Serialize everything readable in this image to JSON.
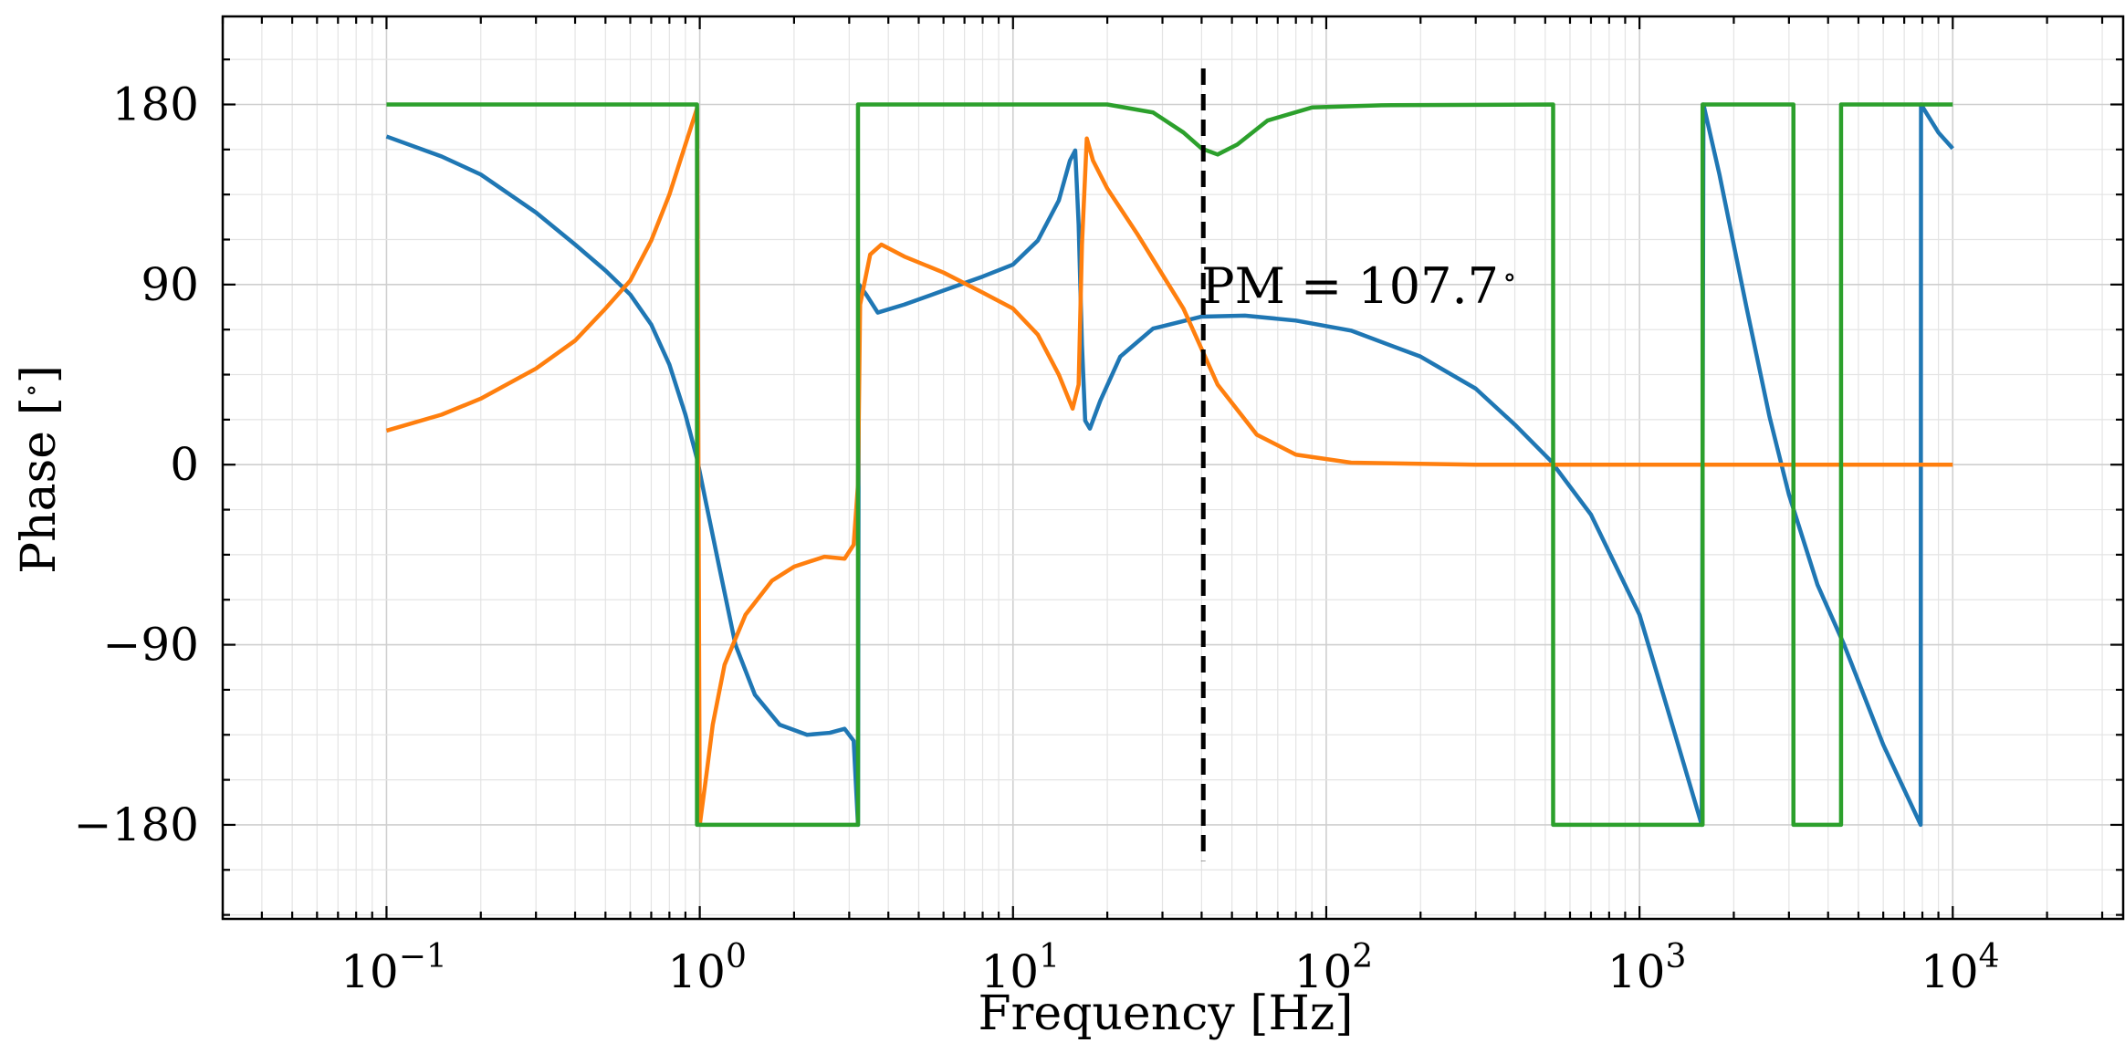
{
  "chart_data": {
    "type": "line",
    "title": "",
    "xlabel": "Frequency [Hz]",
    "ylabel": "Phase [°]",
    "ylabel_main": "Phase [",
    "ylabel_deg": "∘",
    "ylabel_close": "]",
    "xscale": "log",
    "xlim": [
      0.03,
      35000
    ],
    "ylim": [
      -227,
      224
    ],
    "grid": true,
    "x_ticks": [
      {
        "value": 0.1,
        "base": "10",
        "exp": "−1"
      },
      {
        "value": 1,
        "base": "10",
        "exp": "0"
      },
      {
        "value": 10,
        "base": "10",
        "exp": "1"
      },
      {
        "value": 100,
        "base": "10",
        "exp": "2"
      },
      {
        "value": 1000,
        "base": "10",
        "exp": "3"
      },
      {
        "value": 10000,
        "base": "10",
        "exp": "4"
      }
    ],
    "y_ticks": [
      {
        "value": 180,
        "label": "180"
      },
      {
        "value": 90,
        "label": "90"
      },
      {
        "value": 0,
        "label": "0"
      },
      {
        "value": -90,
        "label": "−90"
      },
      {
        "value": -180,
        "label": "−180"
      }
    ],
    "y_minor_step": 22.5,
    "vline": {
      "x": 40.5,
      "y_from": -198,
      "y_to": 198,
      "color": "#000000",
      "style": "dashed"
    },
    "annotation": {
      "x": 40.5,
      "y": 88,
      "text": "PM = 107.7",
      "suffix": "∘"
    },
    "series": [
      {
        "color": "#1f77b4",
        "points": [
          [
            0.1,
            164
          ],
          [
            0.15,
            154
          ],
          [
            0.2,
            145
          ],
          [
            0.3,
            126
          ],
          [
            0.4,
            110
          ],
          [
            0.5,
            97
          ],
          [
            0.6,
            85
          ],
          [
            0.7,
            70
          ],
          [
            0.8,
            50
          ],
          [
            0.9,
            25
          ],
          [
            0.98,
            3
          ],
          [
            1.05,
            -20
          ],
          [
            1.15,
            -50
          ],
          [
            1.3,
            -90
          ],
          [
            1.5,
            -115
          ],
          [
            1.8,
            -130
          ],
          [
            2.2,
            -135
          ],
          [
            2.6,
            -134
          ],
          [
            2.9,
            -132
          ],
          [
            3.1,
            -138
          ],
          [
            3.2,
            -180
          ],
          [
            3.22,
            90
          ],
          [
            3.4,
            85
          ],
          [
            3.7,
            76
          ],
          [
            4.5,
            80
          ],
          [
            6,
            87
          ],
          [
            8,
            94
          ],
          [
            10,
            100
          ],
          [
            12,
            112
          ],
          [
            14,
            132
          ],
          [
            15.2,
            152
          ],
          [
            15.8,
            157
          ],
          [
            16.2,
            120
          ],
          [
            16.6,
            60
          ],
          [
            17,
            22
          ],
          [
            17.6,
            18
          ],
          [
            19,
            32
          ],
          [
            22,
            54
          ],
          [
            28,
            68
          ],
          [
            40,
            74
          ],
          [
            55,
            74.5
          ],
          [
            80,
            72
          ],
          [
            120,
            67
          ],
          [
            200,
            54
          ],
          [
            300,
            38
          ],
          [
            400,
            20
          ],
          [
            520,
            2
          ],
          [
            700,
            -25
          ],
          [
            1000,
            -75
          ],
          [
            1300,
            -135
          ],
          [
            1580,
            -180
          ],
          [
            1600,
            180
          ],
          [
            1800,
            145
          ],
          [
            2200,
            78
          ],
          [
            2600,
            24
          ],
          [
            3000,
            -15
          ],
          [
            3700,
            -60
          ],
          [
            4500,
            -90
          ],
          [
            6000,
            -140
          ],
          [
            7900,
            -180
          ],
          [
            7920,
            180
          ],
          [
            9000,
            166
          ],
          [
            10000,
            158
          ]
        ]
      },
      {
        "color": "#ff7f0e",
        "points": [
          [
            0.1,
            17
          ],
          [
            0.15,
            25
          ],
          [
            0.2,
            33
          ],
          [
            0.3,
            48
          ],
          [
            0.4,
            62
          ],
          [
            0.5,
            78
          ],
          [
            0.6,
            92
          ],
          [
            0.7,
            112
          ],
          [
            0.8,
            135
          ],
          [
            0.9,
            160
          ],
          [
            0.98,
            178
          ],
          [
            1.0,
            -180
          ],
          [
            1.05,
            -155
          ],
          [
            1.1,
            -130
          ],
          [
            1.2,
            -100
          ],
          [
            1.4,
            -75
          ],
          [
            1.7,
            -58
          ],
          [
            2.0,
            -51
          ],
          [
            2.5,
            -46
          ],
          [
            2.9,
            -47
          ],
          [
            3.1,
            -40
          ],
          [
            3.2,
            -10
          ],
          [
            3.25,
            80
          ],
          [
            3.5,
            105
          ],
          [
            3.8,
            110
          ],
          [
            4.5,
            104
          ],
          [
            6,
            96
          ],
          [
            8,
            86
          ],
          [
            10,
            78
          ],
          [
            12,
            65
          ],
          [
            14,
            45
          ],
          [
            15.5,
            28
          ],
          [
            16.2,
            40
          ],
          [
            16.6,
            110
          ],
          [
            17.2,
            163
          ],
          [
            18,
            152
          ],
          [
            20,
            138
          ],
          [
            25,
            115
          ],
          [
            35,
            78
          ],
          [
            45,
            40
          ],
          [
            60,
            15
          ],
          [
            80,
            5
          ],
          [
            120,
            1
          ],
          [
            300,
            0
          ],
          [
            1000,
            0
          ],
          [
            10000,
            0
          ]
        ]
      },
      {
        "color": "#2ca02c",
        "points": [
          [
            0.1,
            180
          ],
          [
            0.98,
            180
          ],
          [
            0.98,
            -180
          ],
          [
            3.2,
            -180
          ],
          [
            3.2,
            180
          ],
          [
            20,
            180
          ],
          [
            28,
            176
          ],
          [
            35,
            166
          ],
          [
            40,
            158
          ],
          [
            45,
            155
          ],
          [
            52,
            160
          ],
          [
            65,
            172
          ],
          [
            90,
            178.5
          ],
          [
            150,
            179.6
          ],
          [
            530,
            180
          ],
          [
            530,
            -180
          ],
          [
            1590,
            -180
          ],
          [
            1590,
            180
          ],
          [
            3100,
            180
          ],
          [
            3100,
            -180
          ],
          [
            4400,
            -180
          ],
          [
            4400,
            180
          ],
          [
            10000,
            180
          ]
        ]
      }
    ]
  }
}
